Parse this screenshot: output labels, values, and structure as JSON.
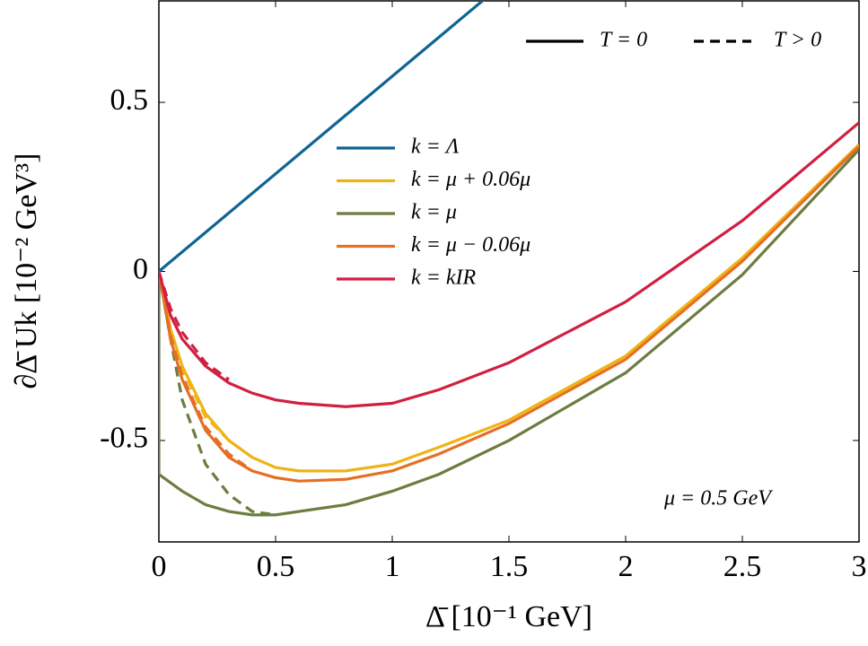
{
  "chart_data": {
    "type": "line",
    "x_label": "Δ̄ [10⁻¹ GeV]",
    "y_label": "∂Δ̄ Uk [10⁻² GeV³]",
    "annotation": "μ = 0.5 GeV",
    "xlim": [
      0,
      3
    ],
    "ylim": [
      -0.8,
      0.8
    ],
    "xticks": [
      0,
      0.5,
      1,
      1.5,
      2,
      2.5,
      3
    ],
    "yticks": [
      -0.5,
      0,
      0.5
    ],
    "line_styles": [
      {
        "name": "T = 0",
        "dashed": false
      },
      {
        "name": "T > 0",
        "dashed": true
      }
    ],
    "series": [
      {
        "name": "k = Λ",
        "color": "#0f6591",
        "x": [
          0,
          1.4
        ],
        "values": [
          0,
          0.808
        ]
      },
      {
        "name": "k = μ + 0.06μ",
        "color": "#eeb414",
        "x": [
          0,
          0.05,
          0.1,
          0.2,
          0.3,
          0.4,
          0.5,
          0.6,
          0.8,
          1.0,
          1.2,
          1.5,
          2.0,
          2.5,
          3.0
        ],
        "values": [
          0,
          -0.17,
          -0.28,
          -0.42,
          -0.5,
          -0.55,
          -0.58,
          -0.59,
          -0.59,
          -0.57,
          -0.52,
          -0.44,
          -0.25,
          0.04,
          0.375
        ],
        "dashed_x": [
          0,
          0.05,
          0.1,
          0.2,
          0.3,
          0.4
        ],
        "dashed_values": [
          0,
          -0.18,
          -0.29,
          -0.43,
          -0.5,
          -0.55
        ]
      },
      {
        "name": "k = μ",
        "color": "#6b7d3f",
        "x": [
          0,
          0,
          0.1,
          0.2,
          0.3,
          0.4,
          0.5,
          0.6,
          0.8,
          1.0,
          1.2,
          1.5,
          2.0,
          2.5,
          3.0
        ],
        "values": [
          0,
          -0.6,
          -0.65,
          -0.69,
          -0.71,
          -0.72,
          -0.72,
          -0.71,
          -0.69,
          -0.65,
          -0.6,
          -0.5,
          -0.3,
          -0.01,
          0.36
        ],
        "dashed_x": [
          0,
          0.05,
          0.1,
          0.2,
          0.3,
          0.4,
          0.5
        ],
        "dashed_values": [
          0,
          -0.2,
          -0.38,
          -0.57,
          -0.66,
          -0.71,
          -0.72
        ]
      },
      {
        "name": "k = μ − 0.06μ",
        "color": "#e56f24",
        "x": [
          0,
          0.05,
          0.1,
          0.2,
          0.3,
          0.4,
          0.5,
          0.6,
          0.8,
          1.0,
          1.2,
          1.5,
          2.0,
          2.5,
          3.0
        ],
        "values": [
          0,
          -0.2,
          -0.32,
          -0.47,
          -0.55,
          -0.59,
          -0.61,
          -0.62,
          -0.615,
          -0.59,
          -0.54,
          -0.45,
          -0.26,
          0.03,
          0.37
        ],
        "dashed_x": [
          0,
          0.05,
          0.1,
          0.2,
          0.3,
          0.4
        ],
        "dashed_values": [
          0,
          -0.19,
          -0.31,
          -0.46,
          -0.54,
          -0.59
        ]
      },
      {
        "name": "k = kIR",
        "color": "#d11f42",
        "x": [
          0,
          0.05,
          0.1,
          0.2,
          0.3,
          0.4,
          0.5,
          0.6,
          0.8,
          1.0,
          1.2,
          1.5,
          2.0,
          2.5,
          3.0
        ],
        "values": [
          0,
          -0.13,
          -0.2,
          -0.28,
          -0.33,
          -0.36,
          -0.38,
          -0.39,
          -0.4,
          -0.39,
          -0.35,
          -0.27,
          -0.09,
          0.15,
          0.44
        ],
        "dashed_x": [
          0,
          0.05,
          0.1,
          0.2,
          0.3
        ],
        "dashed_values": [
          0,
          -0.11,
          -0.18,
          -0.27,
          -0.32
        ]
      }
    ]
  }
}
